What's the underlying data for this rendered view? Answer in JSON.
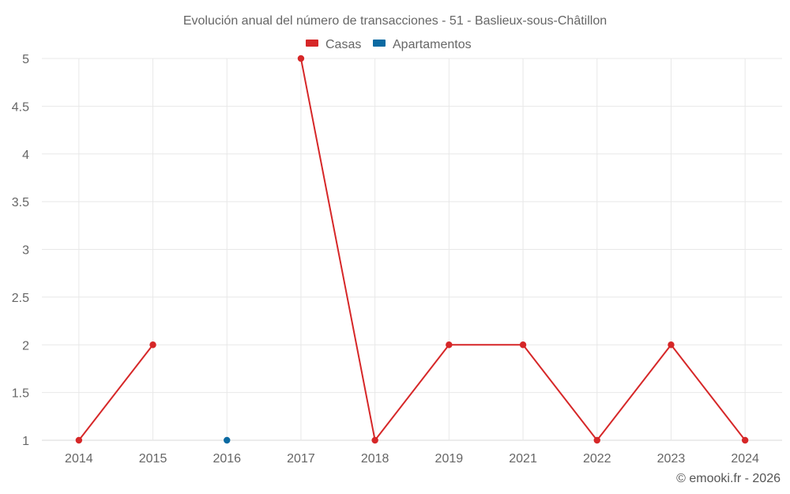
{
  "chart_data": {
    "type": "line",
    "title": "Evolución anual del número de transacciones - 51 - Baslieux-sous-Châtillon",
    "categories": [
      "2014",
      "2015",
      "2016",
      "2017",
      "2018",
      "2019",
      "2021",
      "2022",
      "2023",
      "2024"
    ],
    "series": [
      {
        "name": "Casas",
        "color": "#d62728",
        "values": [
          1,
          2,
          null,
          5,
          1,
          2,
          2,
          1,
          2,
          1
        ]
      },
      {
        "name": "Apartamentos",
        "color": "#0b6aa2",
        "values": [
          null,
          null,
          1,
          null,
          null,
          null,
          null,
          null,
          null,
          null
        ]
      }
    ],
    "ylim": [
      1,
      5
    ],
    "yticks": [
      1,
      1.5,
      2,
      2.5,
      3,
      3.5,
      4,
      4.5,
      5
    ],
    "xlabel": "",
    "ylabel": "",
    "grid": true,
    "legend_position": "top-center"
  },
  "credit": "© emooki.fr - 2026"
}
